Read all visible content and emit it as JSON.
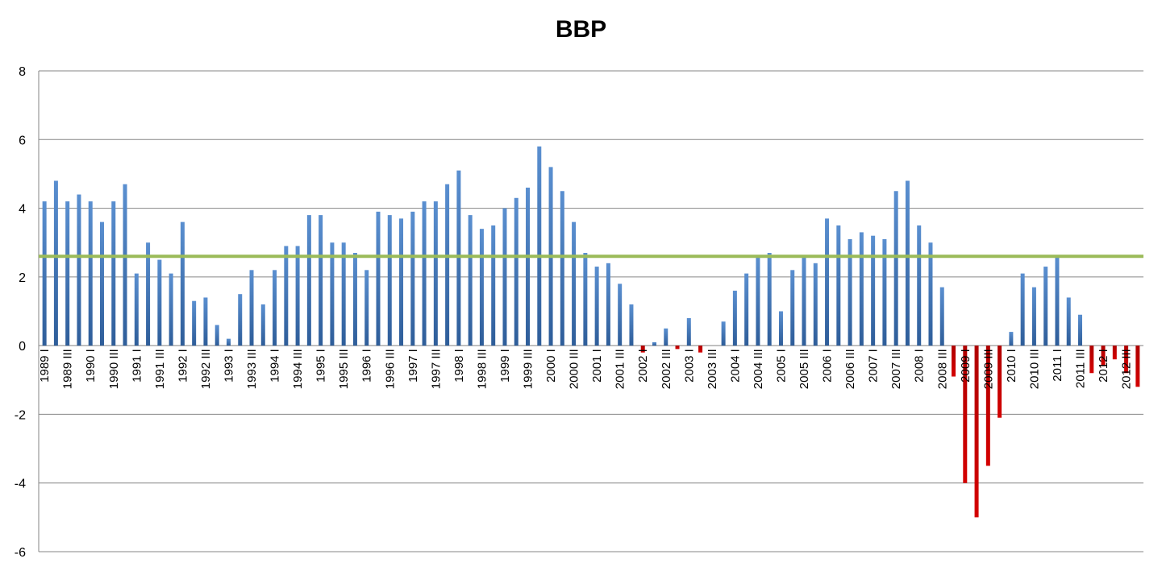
{
  "chart_data": {
    "type": "bar",
    "title": "BBP",
    "xlabel": "",
    "ylabel": "",
    "ylim": [
      -6,
      8
    ],
    "yticks": [
      -6,
      -4,
      -2,
      0,
      2,
      4,
      6,
      8
    ],
    "grid": true,
    "legend": "none",
    "reference_line": {
      "value": 2.6,
      "color": "#9bbb59"
    },
    "colors": {
      "positive": "#4f81bd",
      "negative": "#c00000"
    },
    "categories": [
      "1989 I",
      "1989 II",
      "1989 III",
      "1989 IV",
      "1990 I",
      "1990 II",
      "1990 III",
      "1990 IV",
      "1991 I",
      "1991 II",
      "1991 III",
      "1991 IV",
      "1992 I",
      "1992 II",
      "1992 III",
      "1992 IV",
      "1993 I",
      "1993 II",
      "1993 III",
      "1993 IV",
      "1994 I",
      "1994 II",
      "1994 III",
      "1994 IV",
      "1995 I",
      "1995 II",
      "1995 III",
      "1995 IV",
      "1996 I",
      "1996 II",
      "1996 III",
      "1996 IV",
      "1997 I",
      "1997 II",
      "1997 III",
      "1997 IV",
      "1998 I",
      "1998 II",
      "1998 III",
      "1998 IV",
      "1999 I",
      "1999 II",
      "1999 III",
      "1999 IV",
      "2000 I",
      "2000 II",
      "2000 III",
      "2000 IV",
      "2001 I",
      "2001 II",
      "2001 III",
      "2001 IV",
      "2002 I",
      "2002 II",
      "2002 III",
      "2002 IV",
      "2003 I",
      "2003 II",
      "2003 III",
      "2003 IV",
      "2004 I",
      "2004 II",
      "2004 III",
      "2004 IV",
      "2005 I",
      "2005 II",
      "2005 III",
      "2005 IV",
      "2006 I",
      "2006 II",
      "2006 III",
      "2006 IV",
      "2007 I",
      "2007 II",
      "2007 III",
      "2007 IV",
      "2008 I",
      "2008 II",
      "2008 III",
      "2008 IV",
      "2009 I",
      "2009 II",
      "2009 III",
      "2009 IV",
      "2010 I",
      "2010 II",
      "2010 III",
      "2010 IV",
      "2011 I",
      "2011 II",
      "2011 III",
      "2011 IV",
      "2012 I",
      "2012 II",
      "2012 III",
      "2012 IV"
    ],
    "tick_labels": [
      "1989 I",
      "1989 III",
      "1990 I",
      "1990 III",
      "1991 I",
      "1991 III",
      "1992 I",
      "1992 III",
      "1993 I",
      "1993 III",
      "1994 I",
      "1994 III",
      "1995 I",
      "1995 III",
      "1996 I",
      "1996 III",
      "1997 I",
      "1997 III",
      "1998 I",
      "1998 III",
      "1999 I",
      "1999 III",
      "2000 I",
      "2000 III",
      "2001 I",
      "2001 III",
      "2002 I",
      "2002 III",
      "2003 I",
      "2003 III",
      "2004 I",
      "2004 III",
      "2005 I",
      "2005 III",
      "2006 I",
      "2006 III",
      "2007 I",
      "2007 III",
      "2008 I",
      "2008 III",
      "2009 I",
      "2009 III",
      "2010 I",
      "2010 III",
      "2011 I",
      "2011 III",
      "2012 I",
      "2012 III"
    ],
    "values": [
      4.2,
      4.8,
      4.2,
      4.4,
      4.2,
      3.6,
      4.2,
      4.7,
      2.1,
      3.0,
      2.5,
      2.1,
      3.6,
      1.3,
      1.4,
      0.6,
      0.2,
      1.5,
      2.2,
      1.2,
      2.2,
      2.9,
      2.9,
      3.8,
      3.8,
      3.0,
      3.0,
      2.7,
      2.2,
      3.9,
      3.8,
      3.7,
      3.9,
      4.2,
      4.2,
      4.7,
      5.1,
      3.8,
      3.4,
      3.5,
      4.0,
      4.3,
      4.6,
      5.8,
      5.2,
      4.5,
      3.6,
      2.7,
      2.3,
      2.4,
      1.8,
      1.2,
      -0.2,
      0.1,
      0.5,
      -0.1,
      0.8,
      -0.2,
      0.0,
      0.7,
      1.6,
      2.1,
      2.6,
      2.7,
      1.0,
      2.2,
      2.6,
      2.4,
      3.7,
      3.5,
      3.1,
      3.3,
      3.2,
      3.1,
      4.5,
      4.8,
      3.5,
      3.0,
      1.7,
      -0.9,
      -4.0,
      -5.0,
      -3.5,
      -2.1,
      0.4,
      2.1,
      1.7,
      2.3,
      2.6,
      1.4,
      0.9,
      -0.8,
      -0.6,
      -0.4,
      -0.8,
      -1.2
    ]
  }
}
